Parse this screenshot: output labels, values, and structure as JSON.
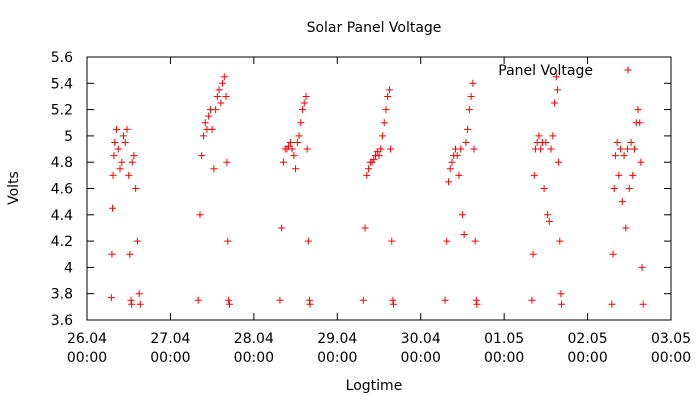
{
  "chart_data": {
    "type": "scatter",
    "title": "Solar Panel Voltage",
    "xlabel": "Logtime",
    "ylabel": "Volts",
    "ylim": [
      3.6,
      5.6
    ],
    "xlim": [
      "2013-04-26T00:00",
      "2013-05-03T00:00"
    ],
    "y_ticks": [
      "3.6",
      "3.8",
      "4",
      "4.2",
      "4.4",
      "4.6",
      "4.8",
      "5",
      "5.2",
      "5.4",
      "5.6"
    ],
    "x_ticks": [
      {
        "date": "26.04",
        "time": "00:00"
      },
      {
        "date": "27.04",
        "time": "00:00"
      },
      {
        "date": "28.04",
        "time": "00:00"
      },
      {
        "date": "29.04",
        "time": "00:00"
      },
      {
        "date": "30.04",
        "time": "00:00"
      },
      {
        "date": "01.05",
        "time": "00:00"
      },
      {
        "date": "02.05",
        "time": "00:00"
      },
      {
        "date": "03.05",
        "time": "00:00"
      }
    ],
    "legend": {
      "position": "top-right"
    },
    "grid": false,
    "marker": "+",
    "series": [
      {
        "name": "Panel Voltage",
        "color": "#ff0000",
        "points": [
          [
            "2013-04-26T07:00",
            3.77
          ],
          [
            "2013-04-26T07:10",
            4.1
          ],
          [
            "2013-04-26T07:20",
            4.45
          ],
          [
            "2013-04-26T07:30",
            4.7
          ],
          [
            "2013-04-26T07:45",
            4.85
          ],
          [
            "2013-04-26T08:00",
            4.95
          ],
          [
            "2013-04-26T08:30",
            5.05
          ],
          [
            "2013-04-26T09:00",
            4.9
          ],
          [
            "2013-04-26T09:30",
            4.75
          ],
          [
            "2013-04-26T10:00",
            4.8
          ],
          [
            "2013-04-26T10:30",
            5.0
          ],
          [
            "2013-04-26T11:00",
            4.95
          ],
          [
            "2013-04-26T11:30",
            5.05
          ],
          [
            "2013-04-26T12:00",
            4.7
          ],
          [
            "2013-04-26T12:20",
            4.1
          ],
          [
            "2013-04-26T12:40",
            3.75
          ],
          [
            "2013-04-26T12:50",
            3.72
          ],
          [
            "2013-04-26T13:00",
            4.8
          ],
          [
            "2013-04-26T13:30",
            4.85
          ],
          [
            "2013-04-26T14:00",
            4.6
          ],
          [
            "2013-04-26T14:30",
            4.2
          ],
          [
            "2013-04-26T15:00",
            3.8
          ],
          [
            "2013-04-26T15:20",
            3.72
          ],
          [
            "2013-04-27T08:00",
            3.75
          ],
          [
            "2013-04-27T08:30",
            4.4
          ],
          [
            "2013-04-27T09:00",
            4.85
          ],
          [
            "2013-04-27T09:30",
            5.0
          ],
          [
            "2013-04-27T10:00",
            5.1
          ],
          [
            "2013-04-27T10:30",
            5.05
          ],
          [
            "2013-04-27T11:00",
            5.15
          ],
          [
            "2013-04-27T11:30",
            5.2
          ],
          [
            "2013-04-27T12:00",
            5.05
          ],
          [
            "2013-04-27T12:30",
            4.75
          ],
          [
            "2013-04-27T13:00",
            5.2
          ],
          [
            "2013-04-27T13:30",
            5.3
          ],
          [
            "2013-04-27T14:00",
            5.35
          ],
          [
            "2013-04-27T14:30",
            5.25
          ],
          [
            "2013-04-27T15:00",
            5.4
          ],
          [
            "2013-04-27T15:30",
            5.45
          ],
          [
            "2013-04-27T16:00",
            5.3
          ],
          [
            "2013-04-27T16:15",
            4.8
          ],
          [
            "2013-04-27T16:30",
            4.2
          ],
          [
            "2013-04-27T16:45",
            3.75
          ],
          [
            "2013-04-27T17:00",
            3.72
          ],
          [
            "2013-04-28T07:30",
            3.75
          ],
          [
            "2013-04-28T08:00",
            4.3
          ],
          [
            "2013-04-28T08:30",
            4.8
          ],
          [
            "2013-04-28T09:00",
            4.9
          ],
          [
            "2013-04-28T09:30",
            4.9
          ],
          [
            "2013-04-28T10:00",
            4.92
          ],
          [
            "2013-04-28T10:30",
            4.95
          ],
          [
            "2013-04-28T11:00",
            4.9
          ],
          [
            "2013-04-28T11:30",
            4.85
          ],
          [
            "2013-04-28T12:00",
            4.75
          ],
          [
            "2013-04-28T12:30",
            4.95
          ],
          [
            "2013-04-28T13:00",
            5.0
          ],
          [
            "2013-04-28T13:30",
            5.1
          ],
          [
            "2013-04-28T14:00",
            5.2
          ],
          [
            "2013-04-28T14:30",
            5.25
          ],
          [
            "2013-04-28T15:00",
            5.3
          ],
          [
            "2013-04-28T15:20",
            4.9
          ],
          [
            "2013-04-28T15:40",
            4.2
          ],
          [
            "2013-04-28T16:00",
            3.75
          ],
          [
            "2013-04-28T16:10",
            3.72
          ],
          [
            "2013-04-29T07:30",
            3.75
          ],
          [
            "2013-04-29T08:00",
            4.3
          ],
          [
            "2013-04-29T08:30",
            4.7
          ],
          [
            "2013-04-29T09:00",
            4.75
          ],
          [
            "2013-04-29T09:30",
            4.8
          ],
          [
            "2013-04-29T10:00",
            4.8
          ],
          [
            "2013-04-29T10:30",
            4.82
          ],
          [
            "2013-04-29T11:00",
            4.85
          ],
          [
            "2013-04-29T11:30",
            4.88
          ],
          [
            "2013-04-29T12:00",
            4.85
          ],
          [
            "2013-04-29T12:30",
            4.9
          ],
          [
            "2013-04-29T13:00",
            5.0
          ],
          [
            "2013-04-29T13:30",
            5.1
          ],
          [
            "2013-04-29T14:00",
            5.2
          ],
          [
            "2013-04-29T14:30",
            5.3
          ],
          [
            "2013-04-29T15:00",
            5.35
          ],
          [
            "2013-04-29T15:20",
            4.9
          ],
          [
            "2013-04-29T15:40",
            4.2
          ],
          [
            "2013-04-29T16:00",
            3.75
          ],
          [
            "2013-04-29T16:10",
            3.72
          ],
          [
            "2013-04-30T07:00",
            3.75
          ],
          [
            "2013-04-30T07:30",
            4.2
          ],
          [
            "2013-04-30T08:00",
            4.65
          ],
          [
            "2013-04-30T08:30",
            4.75
          ],
          [
            "2013-04-30T09:00",
            4.8
          ],
          [
            "2013-04-30T09:30",
            4.85
          ],
          [
            "2013-04-30T10:00",
            4.9
          ],
          [
            "2013-04-30T10:30",
            4.85
          ],
          [
            "2013-04-30T11:00",
            4.7
          ],
          [
            "2013-04-30T11:30",
            4.9
          ],
          [
            "2013-04-30T12:00",
            4.4
          ],
          [
            "2013-04-30T12:30",
            4.25
          ],
          [
            "2013-04-30T13:00",
            4.95
          ],
          [
            "2013-04-30T13:30",
            5.05
          ],
          [
            "2013-04-30T14:00",
            5.2
          ],
          [
            "2013-04-30T14:30",
            5.3
          ],
          [
            "2013-04-30T15:00",
            5.4
          ],
          [
            "2013-04-30T15:20",
            4.9
          ],
          [
            "2013-04-30T15:40",
            4.2
          ],
          [
            "2013-04-30T16:00",
            3.75
          ],
          [
            "2013-04-30T16:10",
            3.72
          ],
          [
            "2013-05-01T08:00",
            3.75
          ],
          [
            "2013-05-01T08:20",
            4.1
          ],
          [
            "2013-05-01T08:40",
            4.7
          ],
          [
            "2013-05-01T09:00",
            4.9
          ],
          [
            "2013-05-01T09:30",
            4.95
          ],
          [
            "2013-05-01T10:00",
            5.0
          ],
          [
            "2013-05-01T10:30",
            4.9
          ],
          [
            "2013-05-01T11:00",
            4.95
          ],
          [
            "2013-05-01T11:30",
            4.6
          ],
          [
            "2013-05-01T12:00",
            4.95
          ],
          [
            "2013-05-01T12:30",
            4.4
          ],
          [
            "2013-05-01T13:00",
            4.35
          ],
          [
            "2013-05-01T13:30",
            4.9
          ],
          [
            "2013-05-01T14:00",
            5.0
          ],
          [
            "2013-05-01T14:30",
            5.25
          ],
          [
            "2013-05-01T15:00",
            5.45
          ],
          [
            "2013-05-01T15:20",
            5.35
          ],
          [
            "2013-05-01T15:40",
            4.8
          ],
          [
            "2013-05-01T16:00",
            4.2
          ],
          [
            "2013-05-01T16:20",
            3.8
          ],
          [
            "2013-05-01T16:30",
            3.72
          ],
          [
            "2013-05-02T07:00",
            3.72
          ],
          [
            "2013-05-02T07:20",
            4.1
          ],
          [
            "2013-05-02T07:40",
            4.6
          ],
          [
            "2013-05-02T08:00",
            4.85
          ],
          [
            "2013-05-02T08:30",
            4.95
          ],
          [
            "2013-05-02T09:00",
            4.7
          ],
          [
            "2013-05-02T09:30",
            4.9
          ],
          [
            "2013-05-02T10:00",
            4.5
          ],
          [
            "2013-05-02T10:30",
            4.85
          ],
          [
            "2013-05-02T11:00",
            4.3
          ],
          [
            "2013-05-02T11:30",
            4.9
          ],
          [
            "2013-05-02T12:00",
            4.6
          ],
          [
            "2013-05-02T12:30",
            4.95
          ],
          [
            "2013-05-02T13:00",
            4.7
          ],
          [
            "2013-05-02T13:30",
            4.9
          ],
          [
            "2013-05-02T14:00",
            5.1
          ],
          [
            "2013-05-02T14:30",
            5.2
          ],
          [
            "2013-05-02T15:00",
            5.1
          ],
          [
            "2013-05-02T15:20",
            4.8
          ],
          [
            "2013-05-02T15:40",
            4.0
          ],
          [
            "2013-05-02T16:00",
            3.72
          ]
        ]
      }
    ]
  }
}
